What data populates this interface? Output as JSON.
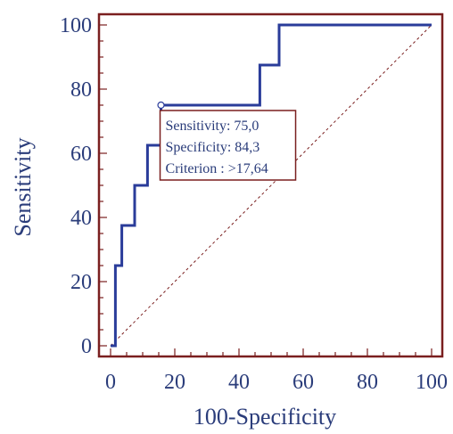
{
  "chart_data": {
    "type": "line",
    "title": "",
    "xlabel": "100-Specificity",
    "ylabel": "Sensitivity",
    "xlim": [
      0,
      100
    ],
    "ylim": [
      0,
      100
    ],
    "x_ticks": [
      0,
      20,
      40,
      60,
      80,
      100
    ],
    "y_ticks": [
      0,
      20,
      40,
      60,
      80,
      100
    ],
    "grid": false,
    "series": [
      {
        "style": "step",
        "points": [
          [
            0,
            0
          ],
          [
            1.5,
            0
          ],
          [
            1.5,
            25
          ],
          [
            3.5,
            25
          ],
          [
            3.5,
            37.5
          ],
          [
            7.5,
            37.5
          ],
          [
            7.5,
            50
          ],
          [
            11.5,
            50
          ],
          [
            11.5,
            62.5
          ],
          [
            15.7,
            62.5
          ],
          [
            15.7,
            75
          ],
          [
            46.5,
            75
          ],
          [
            46.5,
            87.5
          ],
          [
            52.5,
            87.5
          ],
          [
            52.5,
            100
          ],
          [
            100,
            100
          ]
        ]
      },
      {
        "style": "diagonal-reference",
        "points": [
          [
            0,
            0
          ],
          [
            100,
            100
          ]
        ]
      }
    ],
    "highlight_point": {
      "x": 15.7,
      "y": 75
    },
    "annotation": {
      "lines": [
        "Sensitivity: 75,0",
        "Specificity: 84,3",
        "Criterion : >17,64"
      ]
    },
    "colors": {
      "frame": "#7a1f1f",
      "curve": "#2a3c9a",
      "diagonal": "#7a1f1f",
      "text": "#2a3c7a",
      "annotation_text": "#2a3c7a"
    }
  }
}
